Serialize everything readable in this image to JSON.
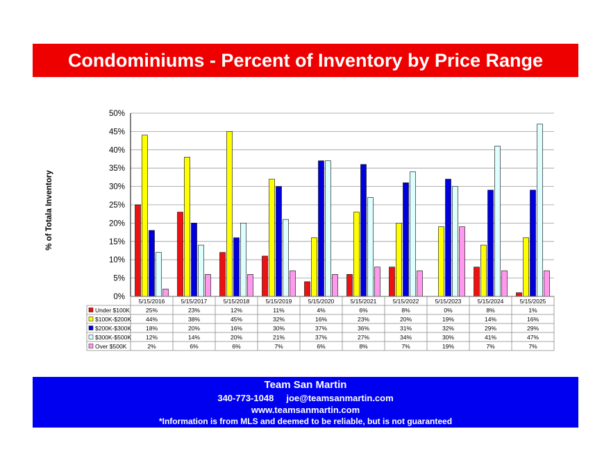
{
  "title": "Condominiums - Percent of Inventory by Price Range",
  "footer": {
    "team": "Team San Martin",
    "phone": "340-773-1048",
    "email": "joe@teamsanmartin.com",
    "website": "www.teamsanmartin.com",
    "disclaimer": "*Information is from MLS and deemed to be reliable, but is not guaranteed"
  },
  "colors": {
    "title_bg": "#ee0000",
    "footer_bg": "#0000f0",
    "series": [
      "#ee1111",
      "#ffff00",
      "#0000dd",
      "#ddffff",
      "#ff99ee"
    ]
  },
  "chart_data": {
    "type": "bar",
    "ylabel": "% of Totala Inventory",
    "ylim": [
      0,
      50
    ],
    "yticks": [
      "0%",
      "5%",
      "10%",
      "15%",
      "20%",
      "25%",
      "30%",
      "35%",
      "40%",
      "45%",
      "50%"
    ],
    "grid": true,
    "legend": "data-table",
    "categories": [
      "5/15/2016",
      "5/15/2017",
      "5/15/2018",
      "5/15/2019",
      "5/15/2020",
      "5/15/2021",
      "5/15/2022",
      "5/15/2023",
      "5/15/2024",
      "5/15/2025"
    ],
    "series": [
      {
        "name": "Under $100K",
        "values": [
          25,
          23,
          12,
          11,
          4,
          6,
          8,
          0,
          8,
          1
        ]
      },
      {
        "name": "$100K-$200K",
        "values": [
          44,
          38,
          45,
          32,
          16,
          23,
          20,
          19,
          14,
          16
        ]
      },
      {
        "name": "$200K-$300K",
        "values": [
          18,
          20,
          16,
          30,
          37,
          36,
          31,
          32,
          29,
          29
        ]
      },
      {
        "name": "$300K-$500K",
        "values": [
          12,
          14,
          20,
          21,
          37,
          27,
          34,
          30,
          41,
          47
        ]
      },
      {
        "name": "Over $500K",
        "values": [
          2,
          6,
          6,
          7,
          6,
          8,
          7,
          19,
          7,
          7
        ]
      }
    ],
    "table_labels": [
      [
        "25%",
        "23%",
        "12%",
        "11%",
        "4%",
        "6%",
        "8%",
        "0%",
        "8%",
        "1%"
      ],
      [
        "44%",
        "38%",
        "45%",
        "32%",
        "16%",
        "23%",
        "20%",
        "19%",
        "14%",
        "16%"
      ],
      [
        "18%",
        "20%",
        "16%",
        "30%",
        "37%",
        "36%",
        "31%",
        "32%",
        "29%",
        "29%"
      ],
      [
        "12%",
        "14%",
        "20%",
        "21%",
        "37%",
        "27%",
        "34%",
        "30%",
        "41%",
        "47%"
      ],
      [
        "2%",
        "6%",
        "6%",
        "7%",
        "6%",
        "8%",
        "7%",
        "19%",
        "7%",
        "7%"
      ]
    ]
  }
}
